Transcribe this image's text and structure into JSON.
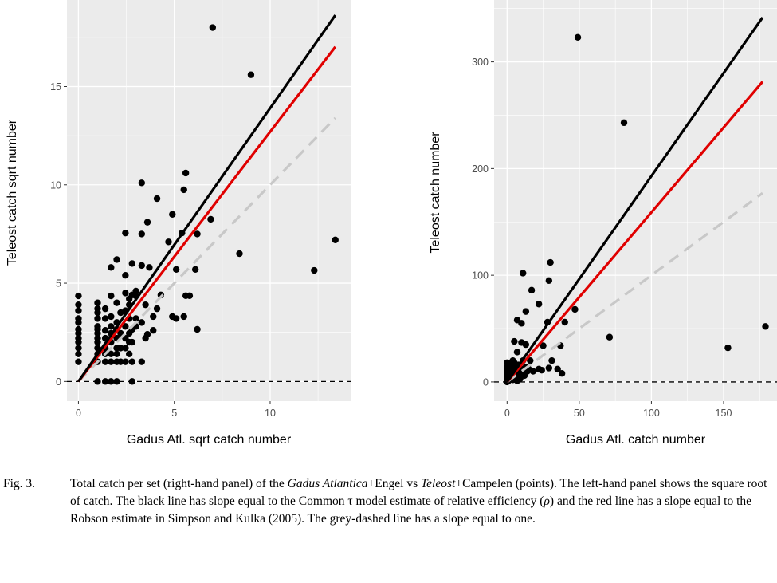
{
  "chart_data": [
    {
      "type": "scatter",
      "panel": "left",
      "xlabel": "Gadus Atl. sqrt catch number",
      "ylabel": "Teleost catch sqrt number",
      "xlim": [
        -0.6,
        14.2
      ],
      "ylim": [
        -1.0,
        19.4
      ],
      "xticks": [
        0,
        5,
        10
      ],
      "yticks": [
        0,
        5,
        10,
        15
      ],
      "grid": true,
      "lines": [
        {
          "name": "Common tau model estimate",
          "color": "#000000",
          "slope": 1.39,
          "dash": false
        },
        {
          "name": "Robson estimate",
          "color": "#e00000",
          "slope": 1.27,
          "dash": false
        },
        {
          "name": "slope equal to one",
          "color": "#c8c8c8",
          "slope": 1.0,
          "dash": true
        }
      ],
      "hline": 0,
      "xmax_line": 13.4,
      "points": [
        [
          0,
          1
        ],
        [
          0,
          1.4
        ],
        [
          0,
          1.7
        ],
        [
          0,
          2
        ],
        [
          0,
          2.2
        ],
        [
          0,
          2.45
        ],
        [
          0,
          2.65
        ],
        [
          0,
          3
        ],
        [
          0,
          3.2
        ],
        [
          0,
          3.6
        ],
        [
          0,
          3.9
        ],
        [
          0,
          4.35
        ],
        [
          1,
          0
        ],
        [
          1,
          1
        ],
        [
          1,
          1.4
        ],
        [
          1,
          1.7
        ],
        [
          1,
          2
        ],
        [
          1,
          2.2
        ],
        [
          1,
          2.45
        ],
        [
          1,
          2.65
        ],
        [
          1,
          2.8
        ],
        [
          1,
          3.2
        ],
        [
          1,
          3.5
        ],
        [
          1,
          3.7
        ],
        [
          1,
          4
        ],
        [
          1.4,
          0
        ],
        [
          1.4,
          1
        ],
        [
          1.4,
          1.4
        ],
        [
          1.4,
          1.7
        ],
        [
          1.4,
          2.2
        ],
        [
          1.4,
          2.6
        ],
        [
          1.4,
          3.2
        ],
        [
          1.4,
          3.7
        ],
        [
          1.7,
          0
        ],
        [
          1.7,
          1
        ],
        [
          1.7,
          1.4
        ],
        [
          1.7,
          2
        ],
        [
          1.7,
          2.45
        ],
        [
          1.7,
          2.8
        ],
        [
          1.7,
          3.3
        ],
        [
          1.7,
          4.35
        ],
        [
          1.7,
          5.8
        ],
        [
          2,
          0
        ],
        [
          2,
          1
        ],
        [
          2,
          1.4
        ],
        [
          2,
          1.7
        ],
        [
          2,
          2.2
        ],
        [
          2,
          2.65
        ],
        [
          2,
          3
        ],
        [
          2,
          4
        ],
        [
          2,
          6.2
        ],
        [
          2.2,
          1
        ],
        [
          2.2,
          1.7
        ],
        [
          2.2,
          2.45
        ],
        [
          2.2,
          3.5
        ],
        [
          2.45,
          1
        ],
        [
          2.45,
          1.7
        ],
        [
          2.45,
          2.2
        ],
        [
          2.45,
          2.8
        ],
        [
          2.45,
          3.6
        ],
        [
          2.45,
          4.5
        ],
        [
          2.45,
          5.4
        ],
        [
          2.45,
          7.55
        ],
        [
          2.65,
          1.4
        ],
        [
          2.65,
          2
        ],
        [
          2.65,
          2.45
        ],
        [
          2.65,
          3.2
        ],
        [
          2.65,
          3.9
        ],
        [
          2.65,
          4.2
        ],
        [
          2.8,
          0
        ],
        [
          2.8,
          1
        ],
        [
          2.8,
          2
        ],
        [
          2.8,
          2.65
        ],
        [
          2.8,
          4.4
        ],
        [
          2.8,
          6
        ],
        [
          3,
          2.8
        ],
        [
          3,
          3.2
        ],
        [
          3,
          4.35
        ],
        [
          3,
          4.6
        ],
        [
          3.3,
          1
        ],
        [
          3.3,
          3.0
        ],
        [
          3.3,
          5.9
        ],
        [
          3.3,
          7.5
        ],
        [
          3.3,
          10.1
        ],
        [
          3.5,
          2.2
        ],
        [
          3.5,
          3.9
        ],
        [
          3.6,
          2.4
        ],
        [
          3.6,
          8.1
        ],
        [
          3.7,
          5.8
        ],
        [
          3.9,
          2.6
        ],
        [
          3.9,
          3.3
        ],
        [
          4.1,
          3.7
        ],
        [
          4.1,
          9.3
        ],
        [
          4.3,
          4.4
        ],
        [
          4.7,
          7.1
        ],
        [
          4.9,
          3.3
        ],
        [
          4.9,
          8.5
        ],
        [
          5.1,
          3.2
        ],
        [
          5.1,
          5.7
        ],
        [
          5.4,
          7.55
        ],
        [
          5.5,
          9.75
        ],
        [
          5.6,
          10.6
        ],
        [
          5.6,
          4.36
        ],
        [
          5.8,
          4.36
        ],
        [
          5.5,
          3.3
        ],
        [
          6.1,
          5.7
        ],
        [
          6.2,
          2.65
        ],
        [
          6.2,
          7.5
        ],
        [
          6.9,
          8.25
        ],
        [
          7,
          18
        ],
        [
          8.4,
          6.5
        ],
        [
          9,
          15.6
        ],
        [
          12.3,
          5.65
        ],
        [
          13.4,
          7.2
        ]
      ]
    },
    {
      "type": "scatter",
      "panel": "right",
      "xlabel": "Gadus Atl. catch number",
      "ylabel": "Teleost catch number",
      "xlim": [
        -9,
        187
      ],
      "ylim": [
        -18,
        358
      ],
      "xticks": [
        0,
        50,
        100,
        150
      ],
      "yticks": [
        0,
        100,
        200,
        300
      ],
      "grid": true,
      "lines": [
        {
          "name": "Common tau model estimate",
          "color": "#000000",
          "slope": 1.93,
          "dash": false
        },
        {
          "name": "Robson estimate",
          "color": "#e00000",
          "slope": 1.59,
          "dash": false
        },
        {
          "name": "slope equal to one",
          "color": "#c8c8c8",
          "slope": 1.0,
          "dash": true
        }
      ],
      "hline": 0,
      "xmax_line": 177,
      "points": [
        [
          0,
          0
        ],
        [
          0,
          2
        ],
        [
          0,
          5
        ],
        [
          0,
          8
        ],
        [
          0,
          11
        ],
        [
          0,
          14
        ],
        [
          0,
          18
        ],
        [
          1,
          1
        ],
        [
          1,
          4
        ],
        [
          1,
          9
        ],
        [
          2,
          3
        ],
        [
          2,
          12
        ],
        [
          2,
          16
        ],
        [
          3,
          6
        ],
        [
          3,
          10
        ],
        [
          4,
          2
        ],
        [
          4,
          14
        ],
        [
          4,
          20
        ],
        [
          5,
          8
        ],
        [
          5,
          18
        ],
        [
          6,
          4
        ],
        [
          6,
          12
        ],
        [
          7,
          1
        ],
        [
          7,
          28
        ],
        [
          8,
          6
        ],
        [
          8,
          16
        ],
        [
          9,
          9
        ],
        [
          9,
          3
        ],
        [
          10,
          12
        ],
        [
          11,
          20
        ],
        [
          12,
          6
        ],
        [
          13,
          14
        ],
        [
          14,
          10
        ],
        [
          15,
          12
        ],
        [
          16,
          20
        ],
        [
          18,
          10
        ],
        [
          49,
          323
        ],
        [
          81,
          243
        ],
        [
          30,
          112
        ],
        [
          11,
          102
        ],
        [
          29,
          95
        ],
        [
          17,
          86
        ],
        [
          13,
          66
        ],
        [
          47,
          68
        ],
        [
          22,
          73
        ],
        [
          7,
          58
        ],
        [
          28,
          56
        ],
        [
          40,
          56
        ],
        [
          10,
          55
        ],
        [
          5,
          38
        ],
        [
          10,
          37
        ],
        [
          13,
          35
        ],
        [
          25,
          34
        ],
        [
          37,
          34
        ],
        [
          71,
          42
        ],
        [
          153,
          32
        ],
        [
          179,
          52
        ],
        [
          31,
          20
        ],
        [
          29,
          13
        ],
        [
          35,
          12
        ],
        [
          38,
          8
        ],
        [
          22,
          12
        ],
        [
          24,
          11
        ]
      ]
    }
  ],
  "caption": {
    "label": "Fig. 3.",
    "t1": "Total catch per set (right-hand panel) of the ",
    "i1": "Gadus Atlantica",
    "t2": "+Engel vs ",
    "i2": "Teleost",
    "t3": "+Campelen (points). The left-hand panel shows the square root of catch. The black line has slope equal to the Common τ model estimate of relative efficiency (",
    "i3": "ρ",
    "t4": ") and the red line has a slope equal to the Robson estimate in Simpson and Kulka (2005). The grey-dashed line has a slope equal to one."
  }
}
